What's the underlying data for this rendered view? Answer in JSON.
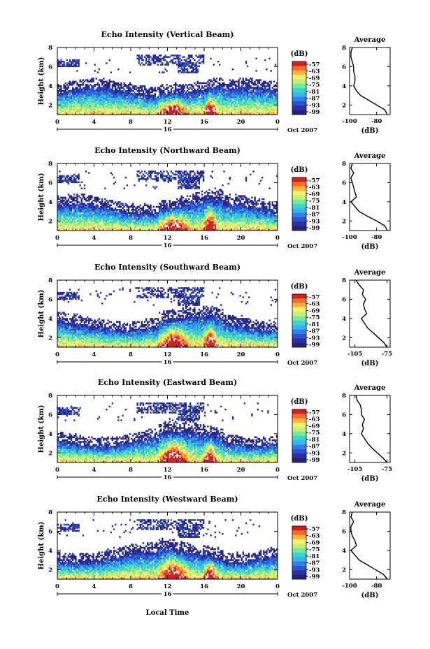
{
  "figure": {
    "x_axis_label": "Local Time",
    "date_label": "Oct 2007",
    "day_label": "16",
    "colorbar_unit": "(dB)",
    "colorbar_ticks": [
      "-57",
      "-63",
      "-69",
      "-75",
      "-81",
      "-87",
      "-93",
      "-99"
    ],
    "colorbar_colors": [
      "#d02020",
      "#ff6a2a",
      "#ffb43c",
      "#f4f070",
      "#c8f070",
      "#78e89a",
      "#38d8c8",
      "#38b4f0",
      "#2e82e6",
      "#2f52cf",
      "#2c2fa8",
      "#232377"
    ]
  },
  "chart_data": [
    {
      "type": "heatmap",
      "title": "Echo Intensity (Vertical Beam)",
      "ylabel": "Height (km)",
      "xlabel": "Local Time",
      "x_ticks": [
        "0",
        "4",
        "8",
        "12",
        "16",
        "20",
        "0"
      ],
      "y_ticks": [
        "2",
        "4",
        "6",
        "8"
      ],
      "ylim": [
        1,
        8
      ],
      "xlim": [
        0,
        24
      ],
      "colorbar": {
        "unit": "(dB)",
        "ticks": [
          -57,
          -63,
          -69,
          -75,
          -81,
          -87,
          -93,
          -99
        ]
      },
      "average_profile": {
        "title": "Average",
        "xlabel": "(dB)",
        "x_ticks": [
          "-100",
          "-80"
        ],
        "xlim": [
          -100,
          -70
        ],
        "heights": [
          1.0,
          1.5,
          2.0,
          2.5,
          3.0,
          3.5,
          4.0,
          4.5,
          5.0,
          5.5,
          6.0,
          6.5,
          7.0,
          7.5,
          8.0
        ],
        "values": [
          -72,
          -74,
          -80,
          -86,
          -92,
          -95,
          -97,
          -96,
          -96,
          -97,
          -97,
          -98,
          -99,
          -99,
          -98
        ]
      }
    },
    {
      "type": "heatmap",
      "title": "Echo Intensity (Northward Beam)",
      "ylabel": "Height (km)",
      "xlabel": "Local Time",
      "x_ticks": [
        "0",
        "4",
        "8",
        "12",
        "16",
        "20",
        "0"
      ],
      "y_ticks": [
        "2",
        "4",
        "6",
        "8"
      ],
      "ylim": [
        1,
        8
      ],
      "xlim": [
        0,
        24
      ],
      "colorbar": {
        "unit": "(dB)",
        "ticks": [
          -57,
          -63,
          -69,
          -75,
          -81,
          -87,
          -93,
          -99
        ]
      },
      "average_profile": {
        "title": "Average",
        "xlabel": "(dB)",
        "x_ticks": [
          "-100",
          "-80"
        ],
        "xlim": [
          -100,
          -70
        ],
        "heights": [
          1.0,
          1.5,
          2.0,
          2.5,
          3.0,
          3.5,
          4.0,
          4.5,
          5.0,
          5.5,
          6.0,
          6.5,
          7.0,
          7.5,
          8.0
        ],
        "values": [
          -72,
          -74,
          -80,
          -87,
          -93,
          -96,
          -99,
          -95,
          -96,
          -97,
          -98,
          -99,
          -97,
          -99,
          -98
        ]
      }
    },
    {
      "type": "heatmap",
      "title": "Echo Intensity (Southward Beam)",
      "ylabel": "Height (km)",
      "xlabel": "Local Time",
      "x_ticks": [
        "0",
        "4",
        "8",
        "12",
        "16",
        "20",
        "0"
      ],
      "y_ticks": [
        "2",
        "4",
        "6",
        "8"
      ],
      "ylim": [
        1,
        8
      ],
      "xlim": [
        0,
        24
      ],
      "colorbar": {
        "unit": "(dB)",
        "ticks": [
          -57,
          -63,
          -69,
          -75,
          -81,
          -87,
          -93,
          -99
        ]
      },
      "average_profile": {
        "title": "Average",
        "xlabel": "(dB)",
        "x_ticks": [
          "-105",
          "-75"
        ],
        "xlim": [
          -110,
          -72
        ],
        "heights": [
          1.0,
          1.5,
          2.0,
          2.5,
          3.0,
          3.5,
          4.0,
          4.5,
          5.0,
          5.5,
          6.0,
          6.5,
          7.0,
          7.5,
          8.0
        ],
        "values": [
          -75,
          -78,
          -83,
          -88,
          -93,
          -96,
          -99,
          -94,
          -96,
          -97,
          -95,
          -98,
          -97,
          -101,
          -104
        ]
      }
    },
    {
      "type": "heatmap",
      "title": "Echo Intensity (Eastward Beam)",
      "ylabel": "Height (km)",
      "xlabel": "Local Time",
      "x_ticks": [
        "0",
        "4",
        "8",
        "12",
        "16",
        "20",
        "0"
      ],
      "y_ticks": [
        "2",
        "4",
        "6",
        "8"
      ],
      "ylim": [
        1,
        8
      ],
      "xlim": [
        0,
        24
      ],
      "colorbar": {
        "unit": "(dB)",
        "ticks": [
          -57,
          -63,
          -69,
          -75,
          -81,
          -87,
          -93,
          -99
        ]
      },
      "average_profile": {
        "title": "Average",
        "xlabel": "(dB)",
        "x_ticks": [
          "-105",
          "-75"
        ],
        "xlim": [
          -110,
          -72
        ],
        "heights": [
          1.0,
          1.5,
          2.0,
          2.5,
          3.0,
          3.5,
          4.0,
          4.5,
          5.0,
          5.5,
          6.0,
          6.5,
          7.0,
          7.5,
          8.0
        ],
        "values": [
          -75,
          -79,
          -84,
          -89,
          -93,
          -96,
          -99,
          -97,
          -98,
          -96,
          -99,
          -99,
          -100,
          -103,
          -104
        ]
      }
    },
    {
      "type": "heatmap",
      "title": "Echo Intensity (Westward Beam)",
      "ylabel": "Height (km)",
      "xlabel": "Local Time",
      "x_ticks": [
        "0",
        "4",
        "8",
        "12",
        "16",
        "20",
        "0"
      ],
      "y_ticks": [
        "2",
        "4",
        "6",
        "8"
      ],
      "ylim": [
        1,
        8
      ],
      "xlim": [
        0,
        24
      ],
      "colorbar": {
        "unit": "(dB)",
        "ticks": [
          -57,
          -63,
          -69,
          -75,
          -81,
          -87,
          -93,
          -99
        ]
      },
      "average_profile": {
        "title": "Average",
        "xlabel": "(dB)",
        "x_ticks": [
          "-100",
          "-80"
        ],
        "xlim": [
          -100,
          -70
        ],
        "heights": [
          1.0,
          1.5,
          2.0,
          2.5,
          3.0,
          3.5,
          4.0,
          4.5,
          5.0,
          5.5,
          6.0,
          6.5,
          7.0,
          7.5,
          8.0
        ],
        "values": [
          -72,
          -75,
          -81,
          -87,
          -93,
          -96,
          -99,
          -95,
          -96,
          -98,
          -99,
          -99,
          -97,
          -99,
          -98
        ]
      }
    }
  ]
}
